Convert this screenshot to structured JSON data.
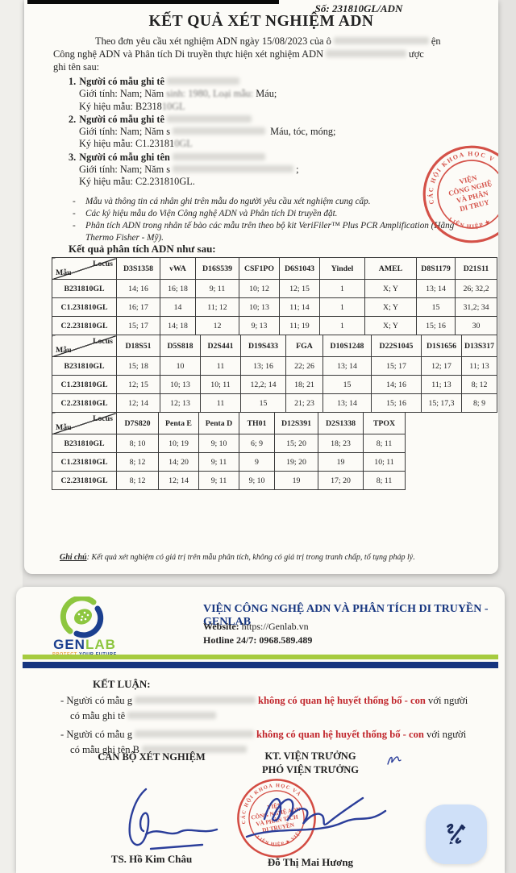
{
  "page1": {
    "doc_number": "Số: 231810GL/ADN",
    "title": "KẾT QUẢ XÉT NGHIỆM ADN",
    "intro_lines": [
      [
        {
          "t": "Theo đơn yêu cầu xét nghiệm ADN ngày 15/08/2023 của ô"
        },
        {
          "b": 118
        },
        {
          "t": "ện"
        }
      ],
      [
        {
          "t": "Công nghệ ADN và Phân tích Di truyền thực hiện xét nghiệm ADN"
        },
        {
          "b": 100
        },
        {
          "t": "ược"
        }
      ],
      [
        {
          "t": "ghi tên sau:"
        }
      ]
    ],
    "persons": [
      {
        "num": "1.",
        "lines": [
          [
            {
              "bt": "Người có mẫu ghi tê"
            },
            {
              "b": 90
            }
          ],
          [
            {
              "t": "Giới tính: Nam; Năm "
            },
            {
              "s": "sinh: 1980, Loại mẫu:"
            },
            {
              "t": " Máu;"
            }
          ],
          [
            {
              "t": "Ký hiệu mẫu: B2318"
            },
            {
              "s": "10GL"
            }
          ]
        ]
      },
      {
        "num": "2.",
        "lines": [
          [
            {
              "bt": "Người có mẫu ghi tê"
            },
            {
              "b": 105
            }
          ],
          [
            {
              "t": "Giới tính: Nam; Năm s"
            },
            {
              "b": 115
            },
            {
              "t": " Máu, tóc, móng;"
            }
          ],
          [
            {
              "t": "Ký hiệu mẫu: C1.23181"
            },
            {
              "s": "0GL"
            }
          ]
        ]
      },
      {
        "num": "3.",
        "lines": [
          [
            {
              "bt": "Người có mẫu ghi tên"
            },
            {
              "b": 115
            }
          ],
          [
            {
              "t": "Giới tính: Nam; Năm s"
            },
            {
              "b": 150
            },
            {
              "t": ";"
            }
          ],
          [
            {
              "t": "Ký hiệu mẫu: C2.231810GL."
            }
          ]
        ]
      }
    ],
    "notes": [
      "Mẫu và thông tin cá nhân ghi trên mẫu do người yêu cầu xét nghiệm cung cấp.",
      "Các ký hiệu mẫu do Viện Công nghệ ADN và Phân tích Di truyền đặt.",
      "Phân tích ADN trong nhân tế bào các mẫu trên theo bộ kit VeriFiler™ Plus PCR Amplification (Hãng Thermo Fisher - Mỹ)."
    ],
    "results_heading": "Kết quả phân tích ADN như sau:",
    "corner_top": "Locus",
    "corner_bottom": "Mẫu",
    "tables": [
      {
        "loci": [
          "D3S1358",
          "vWA",
          "D16S539",
          "CSF1PO",
          "D6S1043",
          "Yindel",
          "AMEL",
          "D8S1179",
          "D21S11"
        ],
        "rows": [
          {
            "sample": "B231810GL",
            "values": [
              "14; 16",
              "16; 18",
              "9; 11",
              "10; 12",
              "12; 15",
              "1",
              "X; Y",
              "13; 14",
              "26; 32,2"
            ]
          },
          {
            "sample": "C1.231810GL",
            "values": [
              "16; 17",
              "14",
              "11; 12",
              "10; 13",
              "11; 14",
              "1",
              "X; Y",
              "15",
              "31,2; 34"
            ]
          },
          {
            "sample": "C2.231810GL",
            "values": [
              "15; 17",
              "14; 18",
              "12",
              "9; 13",
              "11; 19",
              "1",
              "X; Y",
              "15; 16",
              "30"
            ]
          }
        ]
      },
      {
        "loci": [
          "D18S51",
          "D5S818",
          "D2S441",
          "D19S433",
          "FGA",
          "D10S1248",
          "D22S1045",
          "D1S1656",
          "D13S317"
        ],
        "rows": [
          {
            "sample": "B231810GL",
            "values": [
              "15; 18",
              "10",
              "11",
              "13; 16",
              "22; 26",
              "13; 14",
              "15; 17",
              "12; 17",
              "11; 13"
            ]
          },
          {
            "sample": "C1.231810GL",
            "values": [
              "12; 15",
              "10; 13",
              "10; 11",
              "12,2; 14",
              "18; 21",
              "15",
              "14; 16",
              "11; 13",
              "8; 12"
            ]
          },
          {
            "sample": "C2.231810GL",
            "values": [
              "12; 14",
              "12; 13",
              "11",
              "15",
              "21; 23",
              "13; 14",
              "15; 16",
              "15; 17,3",
              "8; 9"
            ]
          }
        ]
      },
      {
        "loci": [
          "D7S820",
          "Penta E",
          "Penta D",
          "TH01",
          "D12S391",
          "D2S1338",
          "TPOX"
        ],
        "rows": [
          {
            "sample": "B231810GL",
            "values": [
              "8; 10",
              "10; 19",
              "9; 10",
              "6; 9",
              "15; 20",
              "18; 23",
              "8; 11"
            ]
          },
          {
            "sample": "C1.231810GL",
            "values": [
              "8; 12",
              "14; 20",
              "9; 11",
              "9",
              "19; 20",
              "19",
              "10; 11"
            ]
          },
          {
            "sample": "C2.231810GL",
            "values": [
              "8; 12",
              "12; 14",
              "9; 11",
              "9; 10",
              "19",
              "17; 20",
              "8; 11"
            ]
          }
        ]
      }
    ],
    "footnote": [
      {
        "u": "Ghi chú"
      },
      {
        "t": ": Kết quả xét nghiệm có giá trị trên mẫu phân tích, không có giá trị trong tranh chấp, tố tụng pháp lý."
      }
    ],
    "stamp": {
      "ring_top": "CÁC HỘI KHOA HỌC V",
      "ring_bottom": "LIÊN HIỆP ★",
      "center": [
        "VIỆN",
        "CÔNG NGHỆ",
        "VÀ PHÂN",
        "DI TRUY"
      ]
    }
  },
  "page2": {
    "logo_gen": "GEN",
    "logo_lab": "LAB",
    "tagline_1": "PROTECT",
    "tagline_2": " YOUR FUTURE",
    "org_name": "VIỆN CÔNG NGHỆ ADN VÀ PHÂN TÍCH DI TRUYỀN - GENLAB",
    "website_label": "Website:",
    "website_value": " https://Genlab.vn",
    "hotline_label": "Hotline 24/7:",
    "hotline_value": " 0968.589.489",
    "conclusion_heading": "KẾT LUẬN:",
    "conclusions": [
      {
        "line1": [
          {
            "t": "- Người có mẫu g"
          },
          {
            "b": 150
          },
          {
            "r": "không có quan hệ huyết thống bố - con"
          },
          {
            "t": " với người"
          }
        ],
        "line2": [
          {
            "t": "có mẫu ghi tê"
          },
          {
            "b": 110
          }
        ]
      },
      {
        "line1": [
          {
            "t": "- Người có mẫu g"
          },
          {
            "b": 148
          },
          {
            "r": "không có quan hệ huyết thống bố - con"
          },
          {
            "t": " với người"
          }
        ],
        "line2": [
          {
            "t": "có mẫu ghi tên B"
          },
          {
            "b": 130
          }
        ]
      }
    ],
    "left_title": "CÁN BỘ XÉT NGHIỆM",
    "right_title_1": "KT. VIỆN TRƯỞNG",
    "right_title_2": "PHÓ VIỆN TRƯỞNG",
    "left_name": "TS. Hồ Kim Châu",
    "right_name": "Đỗ Thị Mai Hương",
    "stamp": {
      "ring_top": "CÁC HỘI KHOA HỌC VÀ",
      "ring_bottom": "LIÊN HIỆP ★ VIỆT NAM",
      "center": [
        "VIỆN",
        "CÔNG NGHỆ ADN",
        "VÀ PHÂN TÍCH",
        "DI TRUYỀN"
      ]
    }
  },
  "fab": {
    "icon_name": "signature-pen-icon"
  },
  "colors": {
    "stamp_red": "#cf3a30",
    "verdict_red": "#c1272d",
    "brand_navy": "#1b3f8f",
    "brand_green": "#8dc63f",
    "bar_green": "#a6cb3f",
    "bar_navy": "#16357f",
    "fab_bg": "#cfe0f8"
  }
}
